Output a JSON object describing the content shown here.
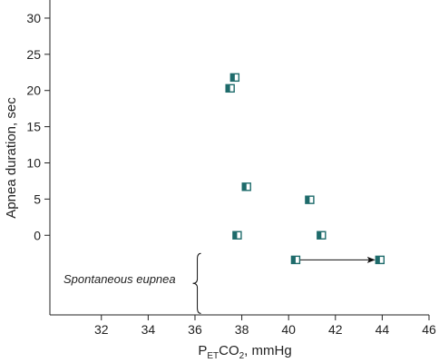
{
  "chart_data": {
    "type": "scatter",
    "title": "",
    "xlabel": {
      "main": "P",
      "sub": "ET",
      "mid": "CO",
      "sub2": "2",
      "tail": ", mmHg"
    },
    "ylabel": "Apnea duration, sec",
    "xlim": [
      29.8,
      46
    ],
    "ylim": [
      -11,
      32
    ],
    "xticks": [
      32,
      34,
      36,
      38,
      40,
      42,
      44,
      46
    ],
    "yticks": [
      0,
      5,
      10,
      15,
      20,
      25,
      30
    ],
    "grid": false,
    "marker_color": "#1e6b6b",
    "points": [
      {
        "x": 37.7,
        "y": 21.8
      },
      {
        "x": 37.5,
        "y": 20.3
      },
      {
        "x": 38.2,
        "y": 6.7
      },
      {
        "x": 40.9,
        "y": 4.9
      },
      {
        "x": 37.8,
        "y": 0
      },
      {
        "x": 41.4,
        "y": 0
      }
    ],
    "eupnea_transition": {
      "from": {
        "x": 40.3,
        "y": -3.4
      },
      "to": {
        "x": 43.9,
        "y": -3.4
      }
    },
    "eupnea_bracket": {
      "x": 36.1,
      "y_top": -2.5,
      "y_bottom": -10.8
    },
    "annotation": "Spontaneous eupnea"
  }
}
